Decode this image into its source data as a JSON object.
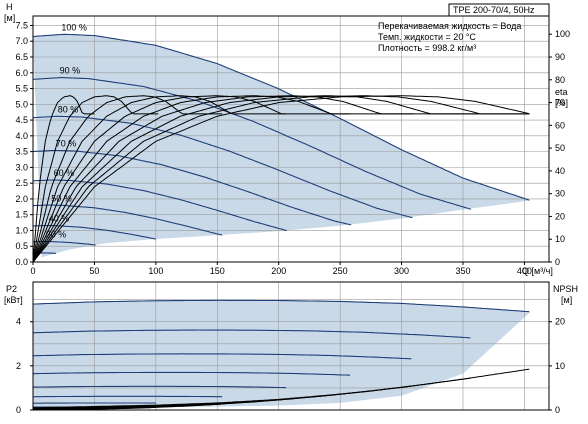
{
  "chart_data": [
    {
      "type": "line",
      "title": "TPE 200-70/4, 50Hz",
      "xlabel": "Q [м³/ч]",
      "ylabel": "H",
      "ylabel_unit": "[м]",
      "y2label": "eta",
      "y2label_unit": "[%]",
      "xlim": [
        0,
        420
      ],
      "ylim": [
        0,
        7.8
      ],
      "y2lim": [
        0,
        108
      ],
      "xticks": [
        0,
        50,
        100,
        150,
        200,
        250,
        300,
        350,
        400
      ],
      "yticks": [
        0.0,
        0.5,
        1.0,
        1.5,
        2.0,
        2.5,
        3.0,
        3.5,
        4.0,
        4.5,
        5.0,
        5.5,
        6.0,
        6.5,
        7.0,
        7.5
      ],
      "y2ticks": [
        0,
        10,
        20,
        30,
        40,
        50,
        60,
        70,
        80,
        90,
        100
      ],
      "grid": true,
      "info": [
        "Перекачиваемая жидкость = Вода",
        "Темп. жидкости = 20 °C",
        "Плотность = 998.2 кг/м³"
      ],
      "speed_labels": [
        "100 %",
        "90 %",
        "80 %",
        "70 %",
        "60 %",
        "50 %",
        "40 %",
        "30 %"
      ],
      "speeds": [
        1.0,
        0.9,
        0.8,
        0.7,
        0.6,
        0.5,
        0.4,
        0.3,
        0.2,
        0.1
      ],
      "head_curve_100": {
        "q": [
          0,
          25,
          50,
          100,
          150,
          200,
          250,
          300,
          350,
          405
        ],
        "h": [
          7.15,
          7.22,
          7.18,
          6.87,
          6.29,
          5.49,
          4.55,
          3.56,
          2.66,
          1.95
        ]
      },
      "eff_curve_100": {
        "q": [
          0,
          50,
          100,
          150,
          200,
          250,
          300,
          330,
          360,
          405
        ],
        "eta": [
          0,
          33,
          53,
          64,
          70,
          72.5,
          73,
          72.5,
          70.5,
          65
        ]
      },
      "region": {
        "lower_q": [
          7,
          30,
          60,
          100,
          150,
          200,
          250,
          300,
          350,
          405
        ],
        "lower_h": [
          0.15,
          0.4,
          0.6,
          0.73,
          0.85,
          0.98,
          1.15,
          1.38,
          1.66,
          1.95
        ]
      }
    },
    {
      "type": "line",
      "ylabel": "P2",
      "ylabel_unit": "[кВт]",
      "y2label": "NPSH",
      "y2label_unit": "[м]",
      "xlim": [
        0,
        420
      ],
      "ylim": [
        0,
        5.8
      ],
      "y2lim": [
        0,
        29
      ],
      "yticks": [
        0,
        2,
        4
      ],
      "y2ticks": [
        0,
        10,
        20
      ],
      "grid": true,
      "power_curve_100": {
        "q": [
          0,
          50,
          100,
          150,
          200,
          250,
          300,
          350,
          405
        ],
        "p": [
          4.8,
          4.9,
          4.95,
          4.97,
          4.96,
          4.92,
          4.83,
          4.67,
          4.45
        ]
      },
      "npsh_curve": {
        "q": [
          0,
          50,
          100,
          150,
          200,
          250,
          300,
          350,
          405
        ],
        "npsh": [
          0.5,
          0.8,
          1.1,
          1.6,
          2.4,
          3.6,
          5.1,
          7.0,
          9.3
        ]
      },
      "region": {
        "lower_q": [
          0,
          100,
          200,
          250,
          300,
          350,
          405
        ],
        "lower_p": [
          0.08,
          0.12,
          0.2,
          0.32,
          0.65,
          1.65,
          4.45
        ]
      }
    }
  ]
}
